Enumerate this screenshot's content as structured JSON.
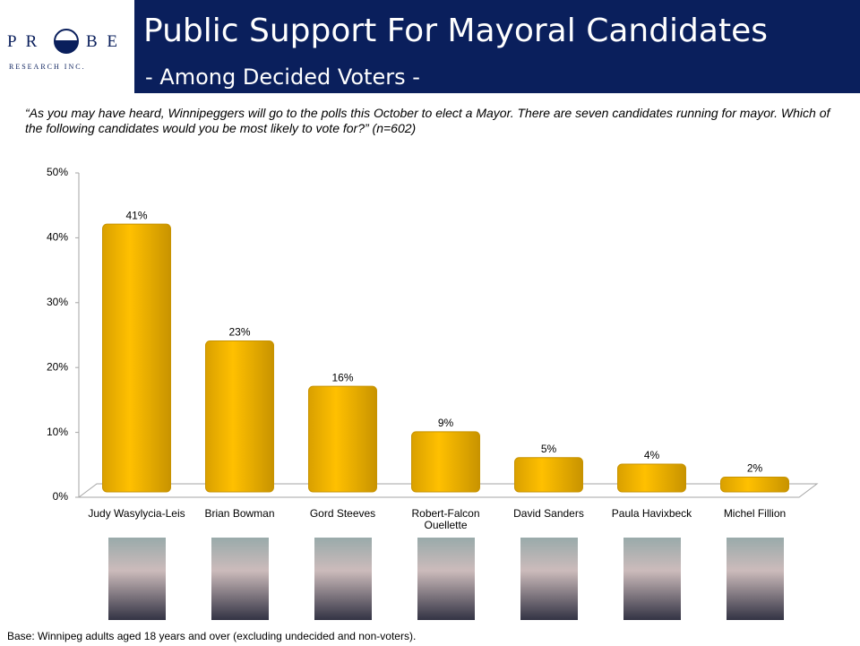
{
  "header": {
    "logo_left": "P R",
    "logo_right": "B E",
    "logo_sub": "RESEARCH INC.",
    "title": "Public Support For Mayoral Candidates",
    "subtitle": "- Among Decided Voters -"
  },
  "question": "“As you may have heard, Winnipeggers will go to the polls this October to elect a Mayor. There are seven candidates running for mayor. Which of the following candidates would you be most likely to vote for?” (n=602)",
  "footnote": "Base: Winnipeg adults aged 18 years and over (excluding undecided and non-voters).",
  "chart_data": {
    "type": "bar",
    "categories": [
      "Judy Wasylycia-Leis",
      "Brian Bowman",
      "Gord Steeves",
      "Robert-Falcon Ouellette",
      "David Sanders",
      "Paula Havixbeck",
      "Michel Fillion"
    ],
    "values": [
      41,
      23,
      16,
      9,
      5,
      4,
      2
    ],
    "value_labels": [
      "41%",
      "23%",
      "16%",
      "9%",
      "5%",
      "4%",
      "2%"
    ],
    "color": "#ffc000",
    "ylim": [
      0,
      50
    ],
    "yticks": [
      {
        "value": 0,
        "label": "0%"
      },
      {
        "value": 10,
        "label": "10%"
      },
      {
        "value": 20,
        "label": "20%"
      },
      {
        "value": 30,
        "label": "30%"
      },
      {
        "value": 40,
        "label": "40%"
      },
      {
        "value": 50,
        "label": "50%"
      }
    ]
  }
}
